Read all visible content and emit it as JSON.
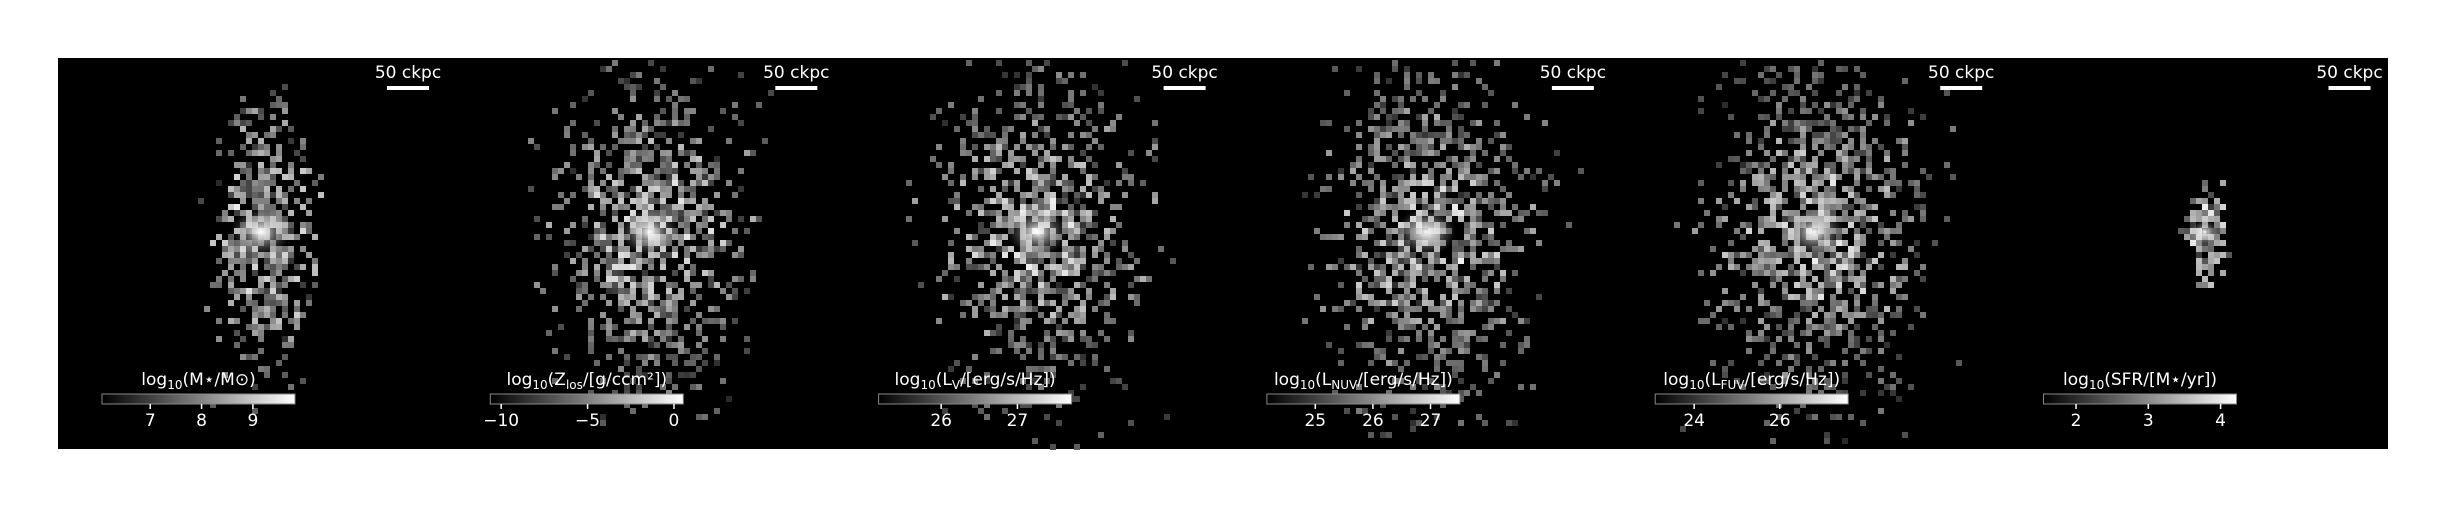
{
  "chart_data": [
    {
      "type": "image",
      "scale_bar": "50 ckpc",
      "label": [
        {
          "text": "log"
        },
        {
          "text": "10",
          "sub": true
        },
        {
          "text": "(M⋆/M⊙)"
        }
      ],
      "xlim": [
        6.06,
        9.82
      ],
      "xticks": [
        7,
        8,
        9
      ]
    },
    {
      "type": "image",
      "scale_bar": "50 ckpc",
      "label": [
        {
          "text": "log"
        },
        {
          "text": "10",
          "sub": true
        },
        {
          "text": "(Z"
        },
        {
          "text": "los",
          "sub": true
        },
        {
          "text": "/[g/ccm²])"
        }
      ],
      "xlim": [
        -10.63,
        0.54
      ],
      "xticks": [
        {
          "value": -10,
          "label": "−10"
        },
        {
          "value": -5,
          "label": "−5"
        },
        0
      ]
    },
    {
      "type": "image",
      "scale_bar": "50 ckpc",
      "label": [
        {
          "text": "log"
        },
        {
          "text": "10",
          "sub": true
        },
        {
          "text": "(L"
        },
        {
          "text": "V",
          "sub": true
        },
        {
          "text": "/[erg/s/Hz])"
        }
      ],
      "xlim": [
        25.18,
        27.71
      ],
      "xticks": [
        26,
        27
      ]
    },
    {
      "type": "image",
      "scale_bar": "50 ckpc",
      "label": [
        {
          "text": "log"
        },
        {
          "text": "10",
          "sub": true
        },
        {
          "text": "(L"
        },
        {
          "text": "NUV",
          "sub": true
        },
        {
          "text": "/[erg/s/Hz])"
        }
      ],
      "xlim": [
        24.16,
        27.51
      ],
      "xticks": [
        25,
        26,
        27
      ]
    },
    {
      "type": "image",
      "scale_bar": "50 ckpc",
      "label": [
        {
          "text": "log"
        },
        {
          "text": "10",
          "sub": true
        },
        {
          "text": "(L"
        },
        {
          "text": "FUV",
          "sub": true
        },
        {
          "text": "/[erg/s/Hz])"
        }
      ],
      "xlim": [
        23.09,
        27.6
      ],
      "xticks": [
        24,
        26
      ]
    },
    {
      "type": "image",
      "scale_bar": "50 ckpc",
      "label": [
        {
          "text": "log"
        },
        {
          "text": "10",
          "sub": true
        },
        {
          "text": "(SFR/[M⋆/yr])"
        }
      ],
      "xlim": [
        1.55,
        4.22
      ],
      "xticks": [
        2,
        3,
        4
      ]
    }
  ]
}
